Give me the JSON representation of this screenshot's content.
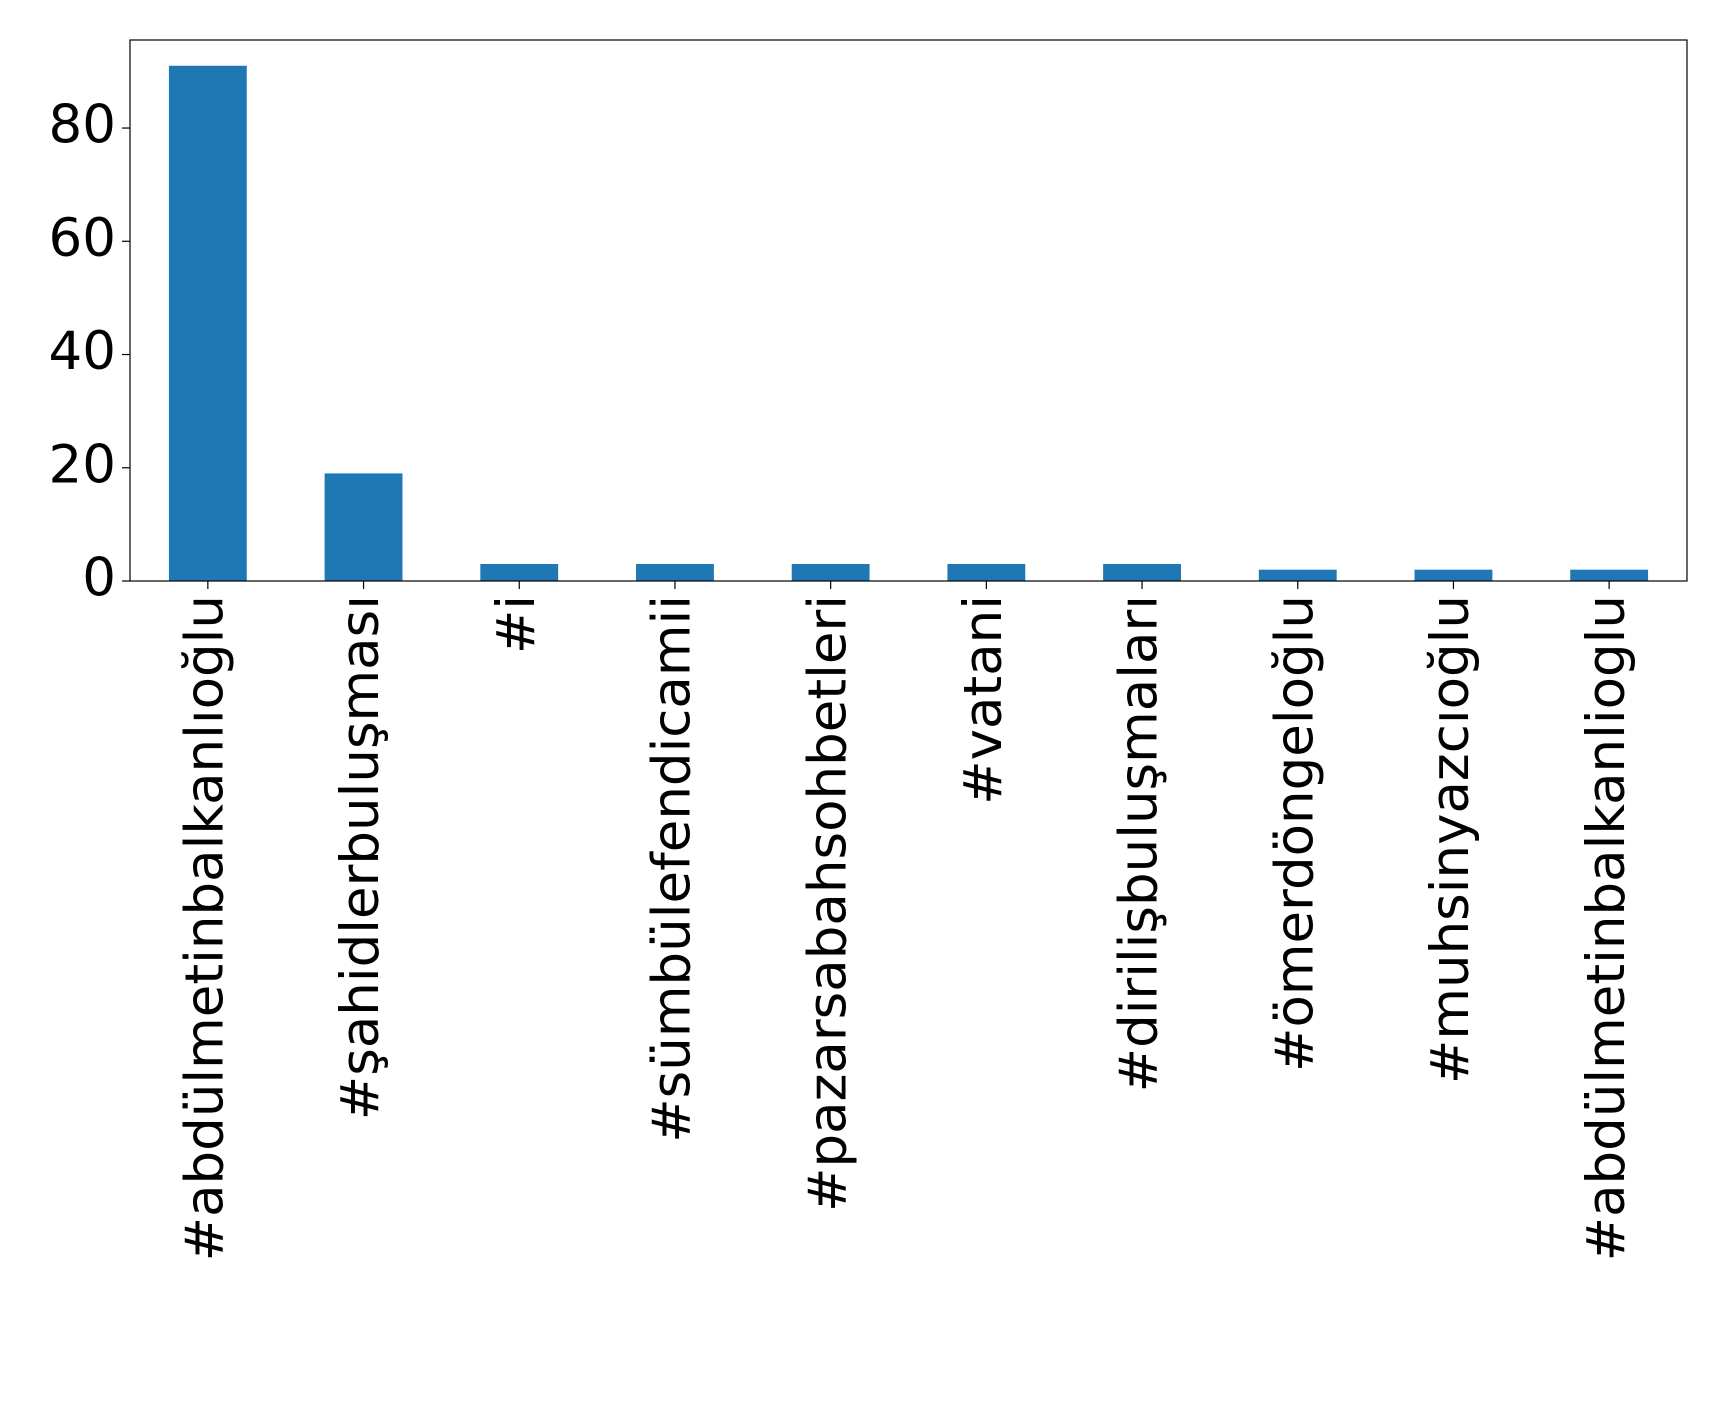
{
  "chart_data": {
    "type": "bar",
    "categories": [
      "#abdülmetinbalkanlıoğlu",
      "#şahidlerbuluşması",
      "#i",
      "#sümbülefendicamii",
      "#pazarsabahsohbetleri",
      "#vatani",
      "#dirilişbuluşmaları",
      "#ömerdöngeloğlu",
      "#muhsinyazcıoğlu",
      "#abdülmetinbalkanlioglu"
    ],
    "values": [
      91,
      19,
      3,
      3,
      3,
      3,
      3,
      2,
      2,
      2
    ],
    "color": "#1f77b4",
    "ylim": [
      0,
      95.55
    ],
    "yticks": [
      0,
      20,
      40,
      60,
      80
    ],
    "grid": false
  }
}
